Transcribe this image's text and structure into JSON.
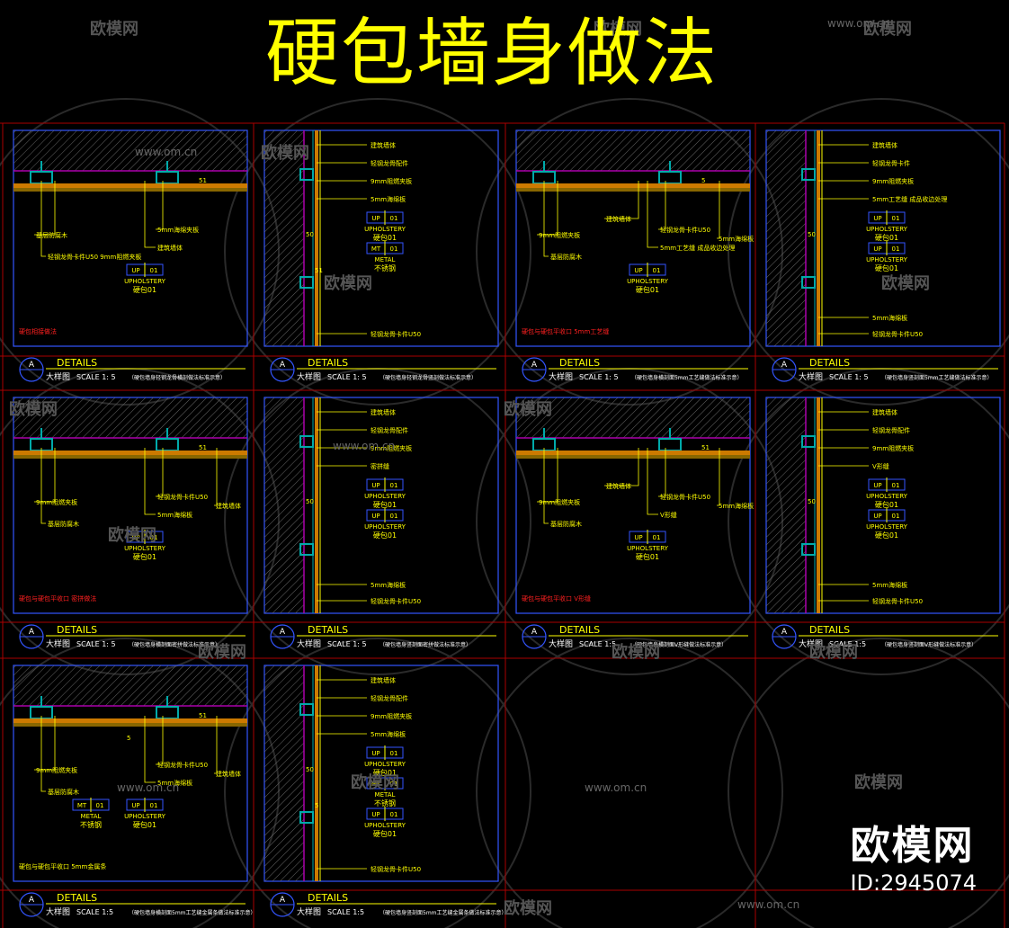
{
  "title": "硬包墙身做法",
  "colors": {
    "background": "#000000",
    "title": "#ffff00",
    "frame": "#3355ff",
    "border": "#cc0000",
    "hatch": "#666666",
    "profile": "#00aaaa",
    "board": "#cc7a00",
    "label": "#ffff00",
    "note": "#ff2020",
    "wall_line": "#aa00aa"
  },
  "watermark": {
    "brand": "欧模网",
    "url": "www.om.cn",
    "id": "ID:2945074"
  },
  "tags": {
    "upholstery": {
      "code": "UP",
      "num": "01",
      "name": "UPHOLSTERY",
      "cn": "硬包01"
    },
    "metal": {
      "code": "MT",
      "num": "01",
      "name": "METAL",
      "cn": "不锈钢"
    }
  },
  "title_block": {
    "symbol": "A",
    "details": "DETAILS",
    "cn": "大样图"
  },
  "panels": [
    {
      "type": "h",
      "labels": [
        "基层防腐木",
        "轻钢龙骨卡件U50 9mm阻燃夹板",
        "5mm海绵夹板",
        "建筑墙体"
      ],
      "tags": [
        "upholstery"
      ],
      "note": "硬包相接做法",
      "note_color": "red",
      "dims": [
        "51"
      ],
      "scale": "SCALE 1: 5",
      "desc": "（硬包墙身轻钢龙骨横剖做法标准示意）"
    },
    {
      "type": "v",
      "labels": [
        "建筑墙体",
        "轻钢龙骨配件",
        "9mm阻燃夹板",
        "5mm海绵板",
        "轻钢龙骨卡件U50"
      ],
      "tags": [
        "upholstery",
        "metal"
      ],
      "note": "",
      "dims": [
        "50",
        "51"
      ],
      "scale": "SCALE 1: 5",
      "desc": "（硬包墙身轻钢龙骨竖剖做法标准示意）"
    },
    {
      "type": "h",
      "labels": [
        "9mm阻燃夹板",
        "基层防腐木",
        "轻钢龙骨卡件U50",
        "5mm工艺缝 成品收边处理",
        "5mm海绵板",
        "建筑墙体"
      ],
      "tags": [
        "upholstery"
      ],
      "note": "硬包与硬包平收口  5mm工艺缝",
      "note_color": "red",
      "dims": [
        "5"
      ],
      "scale": "SCALE 1: 5",
      "desc": "（硬包墙身横剖面5mm工艺缝做法标准示意）"
    },
    {
      "type": "v",
      "labels": [
        "建筑墙体",
        "轻钢龙骨卡件",
        "9mm阻燃夹板",
        "5mm工艺缝 成品收边处理",
        "5mm海绵板",
        "轻钢龙骨卡件U50"
      ],
      "tags": [
        "upholstery",
        "upholstery"
      ],
      "note": "",
      "dims": [
        "50"
      ],
      "scale": "SCALE 1: 5",
      "desc": "（硬包墙身竖剖面5mm工艺缝做法标准示意）"
    },
    {
      "type": "h",
      "labels": [
        "9mm阻燃夹板",
        "基层防腐木",
        "轻钢龙骨卡件U50",
        "5mm海绵板",
        "建筑墙体"
      ],
      "tags": [
        "upholstery"
      ],
      "note": "硬包与硬包平收口  密拼做法",
      "note_color": "red",
      "dims": [
        "51"
      ],
      "scale": "SCALE 1: 5",
      "desc": "（硬包墙身横剖面密拼做法标准示意）"
    },
    {
      "type": "v",
      "labels": [
        "建筑墙体",
        "轻钢龙骨配件",
        "9mm阻燃夹板",
        "密拼缝",
        "5mm海绵板",
        "轻钢龙骨卡件U50"
      ],
      "tags": [
        "upholstery",
        "upholstery"
      ],
      "note": "",
      "dims": [
        "50"
      ],
      "scale": "SCALE 1: 5",
      "desc": "（硬包墙身竖剖面密拼做法标准示意）"
    },
    {
      "type": "h",
      "labels": [
        "9mm阻燃夹板",
        "基层防腐木",
        "轻钢龙骨卡件U50",
        "V形缝",
        "5mm海绵板",
        "建筑墙体"
      ],
      "tags": [
        "upholstery"
      ],
      "note": "硬包与硬包平收口  V形缝",
      "note_color": "red",
      "dims": [
        "51"
      ],
      "scale": "SCALE 1:5",
      "desc": "（硬包墙身横剖面V形缝做法标准示意）"
    },
    {
      "type": "v",
      "labels": [
        "建筑墙体",
        "轻钢龙骨配件",
        "9mm阻燃夹板",
        "V形缝",
        "5mm海绵板",
        "轻钢龙骨卡件U50"
      ],
      "tags": [
        "upholstery",
        "upholstery"
      ],
      "note": "",
      "dims": [
        "50"
      ],
      "scale": "SCALE 1:5",
      "desc": "（硬包墙身竖剖面V形缝做法标准示意）"
    },
    {
      "type": "h",
      "labels": [
        "9mm阻燃夹板",
        "基层防腐木",
        "轻钢龙骨卡件U50",
        "5mm海绵板",
        "建筑墙体"
      ],
      "tags": [
        "metal",
        "upholstery"
      ],
      "note": "硬包与硬包平收口  5mm金属条",
      "note_color": "yellow",
      "dims": [
        "51",
        "5"
      ],
      "scale": "SCALE 1:5",
      "desc": "（硬包墙身横剖面5mm工艺缝金属条做法标准示意）"
    },
    {
      "type": "v",
      "labels": [
        "建筑墙体",
        "轻钢龙骨配件",
        "9mm阻燃夹板",
        "5mm海绵板",
        "轻钢龙骨卡件U50"
      ],
      "tags": [
        "upholstery",
        "metal",
        "upholstery"
      ],
      "note": "",
      "dims": [
        "50",
        "5"
      ],
      "scale": "SCALE 1:5",
      "desc": "（硬包墙身竖剖面5mm工艺缝金属条做法标准示意）"
    }
  ]
}
